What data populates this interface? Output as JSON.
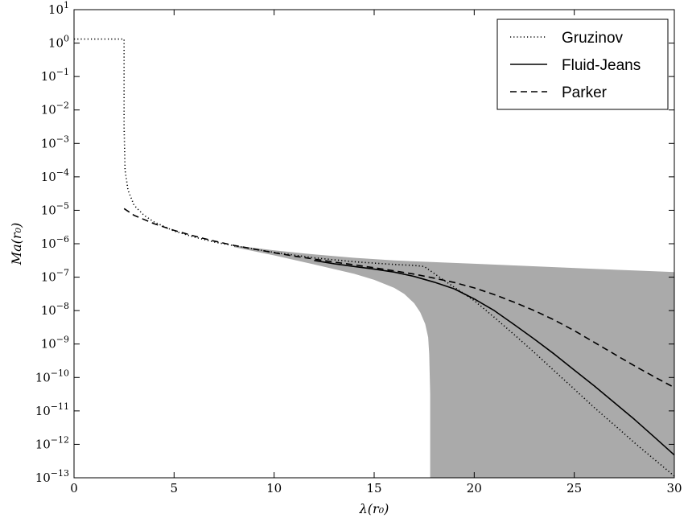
{
  "chart_data": {
    "type": "line",
    "xlabel": "λ(r₀)",
    "ylabel": "Ma(r₀)",
    "xlim": [
      0,
      30
    ],
    "ylim_log10": [
      -13,
      1
    ],
    "y_scale": "log",
    "grid": false,
    "legend_position": "top-right",
    "x_ticks": [
      0,
      5,
      10,
      15,
      20,
      25,
      30
    ],
    "x_tick_labels": [
      "0",
      "5",
      "10",
      "15",
      "20",
      "25",
      "30"
    ],
    "y_ticks_exponent": [
      -13,
      -12,
      -11,
      -10,
      -9,
      -8,
      -7,
      -6,
      -5,
      -4,
      -3,
      -2,
      -1,
      0,
      1
    ],
    "y_tick_base": "10",
    "series": [
      {
        "name": "Gruzinov",
        "style": "dotted",
        "color": "#000000",
        "x": [
          0,
          2.5,
          2.5,
          2.55,
          2.7,
          3.0,
          3.5,
          4.0,
          5.0,
          6.0,
          7.0,
          8.0,
          9.0,
          10.0,
          11.0,
          12.0,
          13.0,
          14.0,
          15.0,
          16.0,
          17.0,
          17.5,
          18.5,
          19.5,
          20.0,
          21.0,
          22.0,
          23.0,
          24.0,
          25.0,
          26.0,
          27.0,
          28.0,
          29.0,
          30.0
        ],
        "log10_y": [
          0.12,
          0.12,
          -2.5,
          -3.8,
          -4.4,
          -4.85,
          -5.15,
          -5.35,
          -5.62,
          -5.8,
          -5.95,
          -6.06,
          -6.16,
          -6.26,
          -6.34,
          -6.42,
          -6.48,
          -6.54,
          -6.58,
          -6.62,
          -6.65,
          -6.68,
          -7.1,
          -7.5,
          -7.7,
          -8.2,
          -8.72,
          -9.25,
          -9.8,
          -10.35,
          -10.9,
          -11.42,
          -11.95,
          -12.45,
          -12.95
        ]
      },
      {
        "name": "Fluid-Jeans",
        "style": "solid",
        "color": "#000000",
        "x": [
          12.0,
          13.0,
          14.0,
          15.0,
          16.0,
          17.0,
          18.0,
          19.0,
          20.0,
          21.0,
          22.0,
          23.0,
          24.0,
          25.0,
          26.0,
          27.0,
          28.0,
          29.0,
          30.0
        ],
        "log10_y": [
          -6.5,
          -6.6,
          -6.68,
          -6.76,
          -6.85,
          -6.98,
          -7.15,
          -7.35,
          -7.65,
          -8.0,
          -8.42,
          -8.85,
          -9.3,
          -9.78,
          -10.25,
          -10.75,
          -11.25,
          -11.78,
          -12.32
        ]
      },
      {
        "name": "Parker",
        "style": "dashed",
        "color": "#000000",
        "x": [
          2.5,
          3.0,
          4.0,
          5.0,
          6.0,
          7.0,
          8.0,
          9.0,
          10.0,
          11.0,
          12.0,
          13.0,
          14.0,
          15.0,
          16.0,
          17.0,
          18.0,
          19.0,
          20.0,
          21.0,
          22.0,
          23.0,
          24.0,
          25.0,
          26.0,
          27.0,
          28.0,
          29.0,
          30.0
        ],
        "log10_y": [
          -4.95,
          -5.15,
          -5.4,
          -5.6,
          -5.77,
          -5.92,
          -6.05,
          -6.16,
          -6.27,
          -6.37,
          -6.46,
          -6.55,
          -6.63,
          -6.72,
          -6.81,
          -6.91,
          -7.03,
          -7.16,
          -7.32,
          -7.52,
          -7.75,
          -8.0,
          -8.28,
          -8.6,
          -8.95,
          -9.3,
          -9.65,
          -9.98,
          -10.3
        ]
      }
    ],
    "shaded_region": {
      "color": "#aaaaaa",
      "upper_x": [
        8.0,
        10.0,
        12.0,
        14.0,
        16.0,
        18.0,
        20.0,
        22.0,
        24.0,
        26.0,
        28.0,
        30.0
      ],
      "upper_log10_y": [
        -6.05,
        -6.2,
        -6.32,
        -6.42,
        -6.5,
        -6.55,
        -6.6,
        -6.65,
        -6.7,
        -6.75,
        -6.8,
        -6.85
      ],
      "lower_x": [
        8.0,
        10.0,
        12.0,
        14.0,
        15.0,
        16.0,
        16.5,
        17.0,
        17.3,
        17.55,
        17.7,
        17.75,
        17.8,
        17.8
      ],
      "lower_log10_y": [
        -6.1,
        -6.35,
        -6.62,
        -6.9,
        -7.08,
        -7.32,
        -7.5,
        -7.78,
        -8.05,
        -8.4,
        -8.8,
        -9.3,
        -10.5,
        -13
      ]
    }
  }
}
